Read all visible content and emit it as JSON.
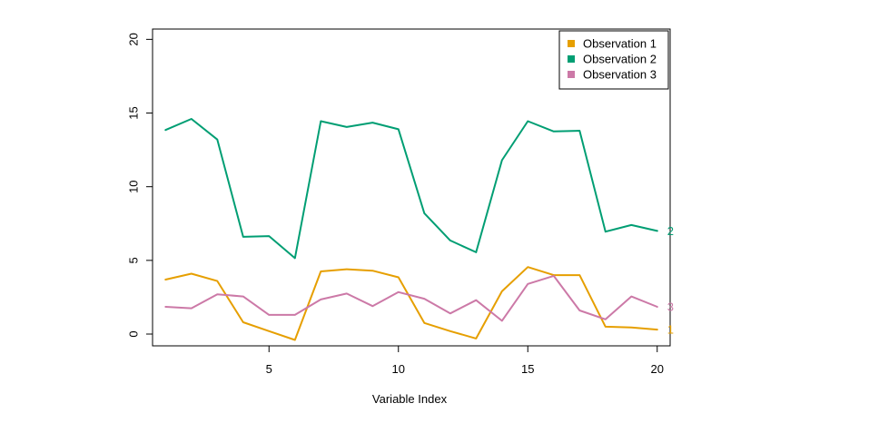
{
  "chart_data": {
    "type": "line",
    "title": "",
    "xlabel": "Variable Index",
    "ylabel": "",
    "x": [
      1,
      2,
      3,
      4,
      5,
      6,
      7,
      8,
      9,
      10,
      11,
      12,
      13,
      14,
      15,
      16,
      17,
      18,
      19,
      20
    ],
    "xlim": [
      0.5,
      20.5
    ],
    "ylim": [
      -0.8,
      20.7
    ],
    "x_ticks": [
      5,
      10,
      15,
      20
    ],
    "y_ticks": [
      0,
      5,
      10,
      15,
      20
    ],
    "x_tick_labels": [
      "5",
      "10",
      "15",
      "20"
    ],
    "y_tick_labels": [
      "0",
      "5",
      "10",
      "15",
      "20"
    ],
    "grid": false,
    "legend_position": "top-right",
    "series": [
      {
        "name": "Observation 1",
        "end_label": "1",
        "color": "#E69F00",
        "values": [
          3.7,
          4.1,
          3.6,
          0.8,
          0.2,
          -0.4,
          4.25,
          4.4,
          4.3,
          3.85,
          0.75,
          0.2,
          -0.3,
          2.9,
          4.55,
          4.0,
          4.0,
          0.5,
          0.45,
          0.3
        ]
      },
      {
        "name": "Observation 2",
        "end_label": "2",
        "color": "#009E73",
        "values": [
          13.85,
          14.6,
          13.2,
          6.6,
          6.65,
          5.15,
          14.45,
          14.05,
          14.35,
          13.9,
          8.2,
          6.35,
          5.55,
          11.8,
          14.45,
          13.75,
          13.8,
          6.95,
          7.4,
          7.0
        ]
      },
      {
        "name": "Observation 3",
        "end_label": "3",
        "color": "#CC79A7",
        "values": [
          1.85,
          1.75,
          2.7,
          2.55,
          1.3,
          1.3,
          2.35,
          2.75,
          1.9,
          2.85,
          2.4,
          1.4,
          2.3,
          0.9,
          3.4,
          3.95,
          1.6,
          1.0,
          2.55,
          1.85
        ]
      }
    ]
  }
}
